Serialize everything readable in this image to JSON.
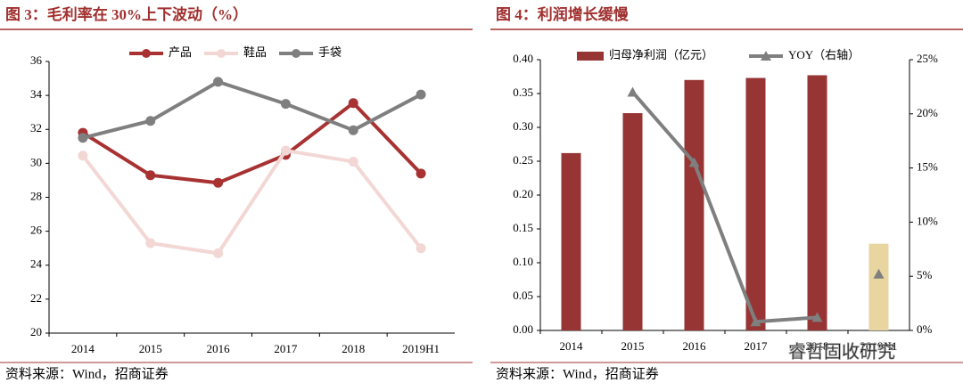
{
  "chart_data": [
    {
      "type": "line",
      "title": "图 3：毛利率在 30%上下波动（%）",
      "source": "资料来源：Wind，招商证券",
      "categories": [
        "2014",
        "2015",
        "2016",
        "2017",
        "2018",
        "2019H1"
      ],
      "series": [
        {
          "name": "产品",
          "color": "#a83232",
          "values": [
            31.8,
            29.3,
            28.85,
            30.5,
            33.55,
            29.4
          ]
        },
        {
          "name": "鞋品",
          "color": "#f2d7d5",
          "values": [
            30.45,
            25.3,
            24.7,
            30.75,
            30.1,
            25.0
          ]
        },
        {
          "name": "手袋",
          "color": "#7f7f7f",
          "values": [
            31.5,
            32.5,
            34.8,
            33.5,
            31.95,
            34.05
          ]
        }
      ],
      "ylim": [
        20,
        36
      ],
      "yticks": [
        20,
        22,
        24,
        26,
        28,
        30,
        32,
        34,
        36
      ]
    },
    {
      "type": "bar-line",
      "title": "图 4：利润增长缓慢",
      "source": "资料来源：Wind，招商证券",
      "watermark": "睿哲固收研究",
      "categories": [
        "2014",
        "2015",
        "2016",
        "2017",
        "2018",
        "2019H1"
      ],
      "series": [
        {
          "name": "归母净利润（亿元）",
          "type": "bar",
          "color": "#973434",
          "colors": [
            "#973434",
            "#973434",
            "#973434",
            "#973434",
            "#973434",
            "#e8d5a0"
          ],
          "values": [
            0.262,
            0.321,
            0.37,
            0.373,
            0.377,
            0.128
          ]
        },
        {
          "name": "YOY（右轴）",
          "type": "line",
          "axis": "y2",
          "color": "#7f7f7f",
          "markers_only_from": 5,
          "values": [
            null,
            22.0,
            15.5,
            0.8,
            1.2,
            5.2
          ]
        }
      ],
      "ylim": [
        0,
        0.4
      ],
      "yticks": [
        {
          "value": 0,
          "label": "0.00"
        },
        {
          "value": 0.05,
          "label": "0.05"
        },
        {
          "value": 0.1,
          "label": "0.10"
        },
        {
          "value": 0.15,
          "label": "0.15"
        },
        {
          "value": 0.2,
          "label": "0.20"
        },
        {
          "value": 0.25,
          "label": "0.25"
        },
        {
          "value": 0.3,
          "label": "0.30"
        },
        {
          "value": 0.35,
          "label": "0.35"
        },
        {
          "value": 0.4,
          "label": "0.40"
        }
      ],
      "y2lim": [
        0,
        25
      ],
      "y2ticks": [
        {
          "value": 0,
          "label": "0%"
        },
        {
          "value": 5,
          "label": "5%"
        },
        {
          "value": 10,
          "label": "10%"
        },
        {
          "value": 15,
          "label": "15%"
        },
        {
          "value": 20,
          "label": "20%"
        },
        {
          "value": 25,
          "label": "25%"
        }
      ]
    }
  ]
}
